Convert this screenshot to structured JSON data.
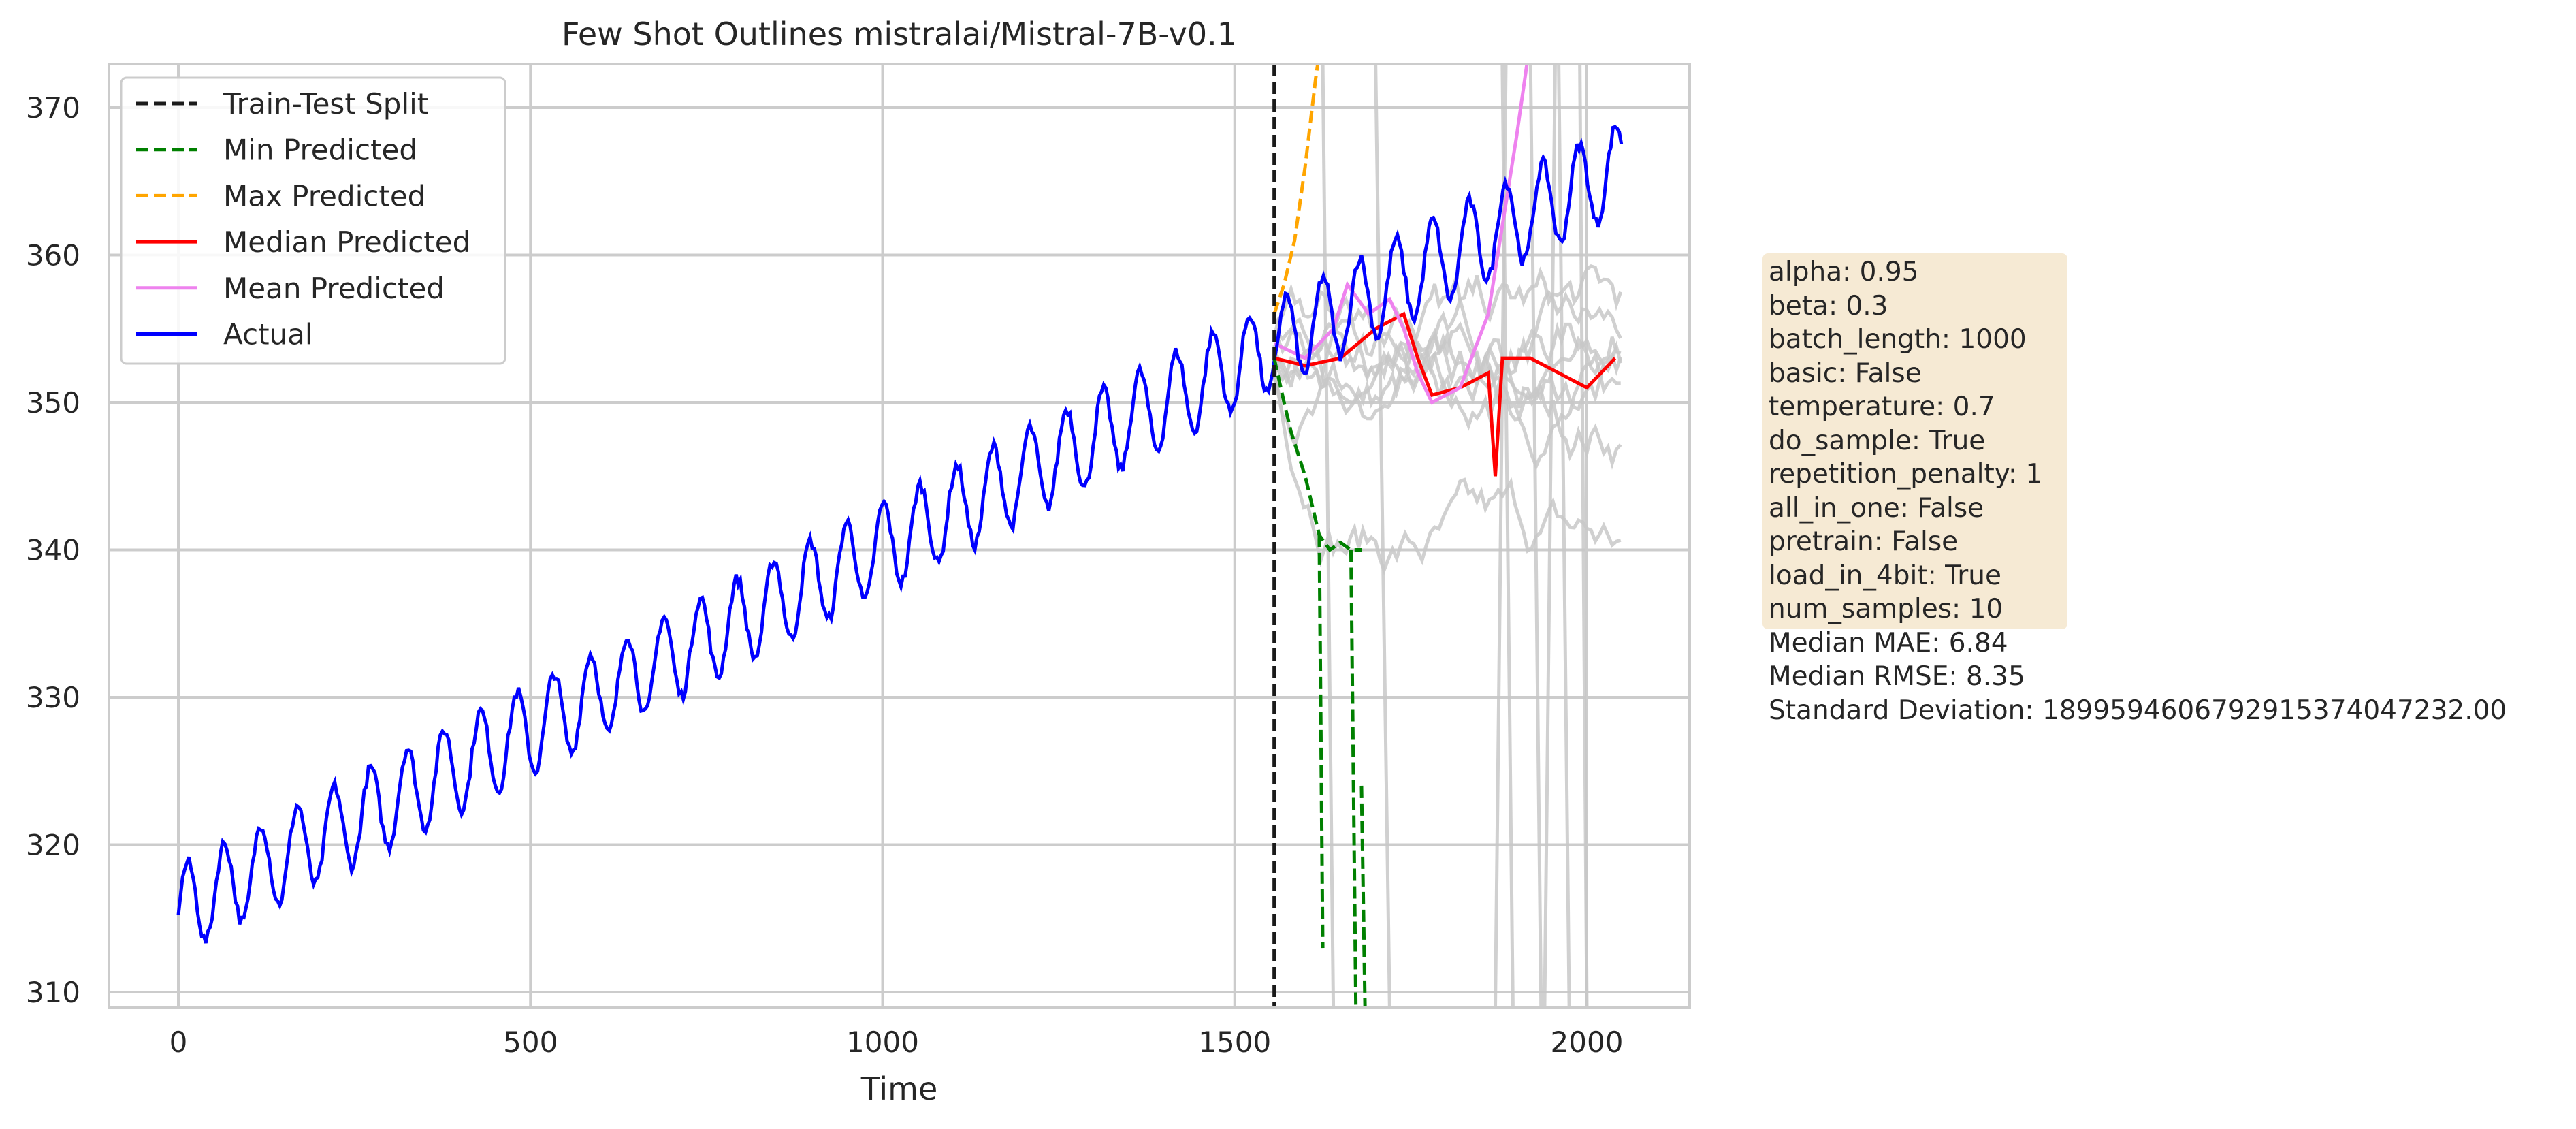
{
  "chart_data": {
    "type": "line",
    "title": "Few Shot Outlines mistralai/Mistral-7B-v0.1",
    "xlabel": "Time",
    "ylabel": "",
    "xlim": [
      -100,
      2150
    ],
    "ylim": [
      309,
      373
    ],
    "x_ticks": [
      0,
      500,
      1000,
      1500,
      2000
    ],
    "y_ticks": [
      310,
      320,
      330,
      340,
      350,
      360,
      370
    ],
    "grid": true,
    "legend_position": "upper-left",
    "train_test_split": 1556,
    "series": [
      {
        "name": "Train-Test Split",
        "style": "dashed",
        "color": "#1a1a1a"
      },
      {
        "name": "Min Predicted",
        "style": "dashed",
        "color": "#008000",
        "points": [
          [
            1556,
            353
          ],
          [
            1570,
            350
          ],
          [
            1580,
            348
          ],
          [
            1600,
            345
          ],
          [
            1620,
            341
          ],
          [
            1635,
            340
          ],
          [
            1650,
            340.5
          ],
          [
            1665,
            340
          ],
          [
            1680,
            340
          ]
        ]
      },
      {
        "name": "Max Predicted",
        "style": "dashed",
        "color": "#ffa500",
        "points": [
          [
            1556,
            356
          ],
          [
            1570,
            358
          ],
          [
            1585,
            361
          ],
          [
            1600,
            366
          ],
          [
            1615,
            372
          ],
          [
            1618,
            373
          ]
        ]
      },
      {
        "name": "Median Predicted",
        "style": "solid",
        "color": "#ff0000",
        "points": [
          [
            1556,
            353
          ],
          [
            1600,
            352.5
          ],
          [
            1650,
            353
          ],
          [
            1700,
            355
          ],
          [
            1740,
            356
          ],
          [
            1760,
            353
          ],
          [
            1780,
            350.5
          ],
          [
            1820,
            351
          ],
          [
            1860,
            352
          ],
          [
            1870,
            345
          ],
          [
            1880,
            353
          ],
          [
            1920,
            353
          ],
          [
            1960,
            352
          ],
          [
            2000,
            351
          ],
          [
            2040,
            353
          ]
        ]
      },
      {
        "name": "Mean Predicted",
        "style": "solid",
        "color": "#ee82ee",
        "points": [
          [
            1556,
            354
          ],
          [
            1600,
            353
          ],
          [
            1640,
            355
          ],
          [
            1660,
            358
          ],
          [
            1690,
            356
          ],
          [
            1720,
            357
          ],
          [
            1740,
            355
          ],
          [
            1760,
            352
          ],
          [
            1780,
            350
          ],
          [
            1820,
            351
          ],
          [
            1860,
            356
          ],
          [
            1880,
            362
          ],
          [
            1900,
            368
          ],
          [
            1915,
            373
          ]
        ]
      },
      {
        "name": "Actual",
        "style": "solid",
        "color": "#0000ff",
        "trend": [
          [
            0,
            315.5
          ],
          [
            2050,
            366
          ]
        ],
        "seasonal_amplitude": 3,
        "period": 52
      }
    ],
    "sample_series_color": "#c8c8c8"
  },
  "info_lines": [
    "alpha: 0.95",
    "beta: 0.3",
    "batch_length: 1000",
    "basic: False",
    "temperature: 0.7",
    "do_sample: True",
    "repetition_penalty: 1",
    "all_in_one: False",
    "pretrain: False",
    "load_in_4bit: True",
    "num_samples: 10",
    "Median MAE: 6.84",
    "Median RMSE: 8.35",
    "Standard Deviation: 1899594606792915374047232.00"
  ]
}
